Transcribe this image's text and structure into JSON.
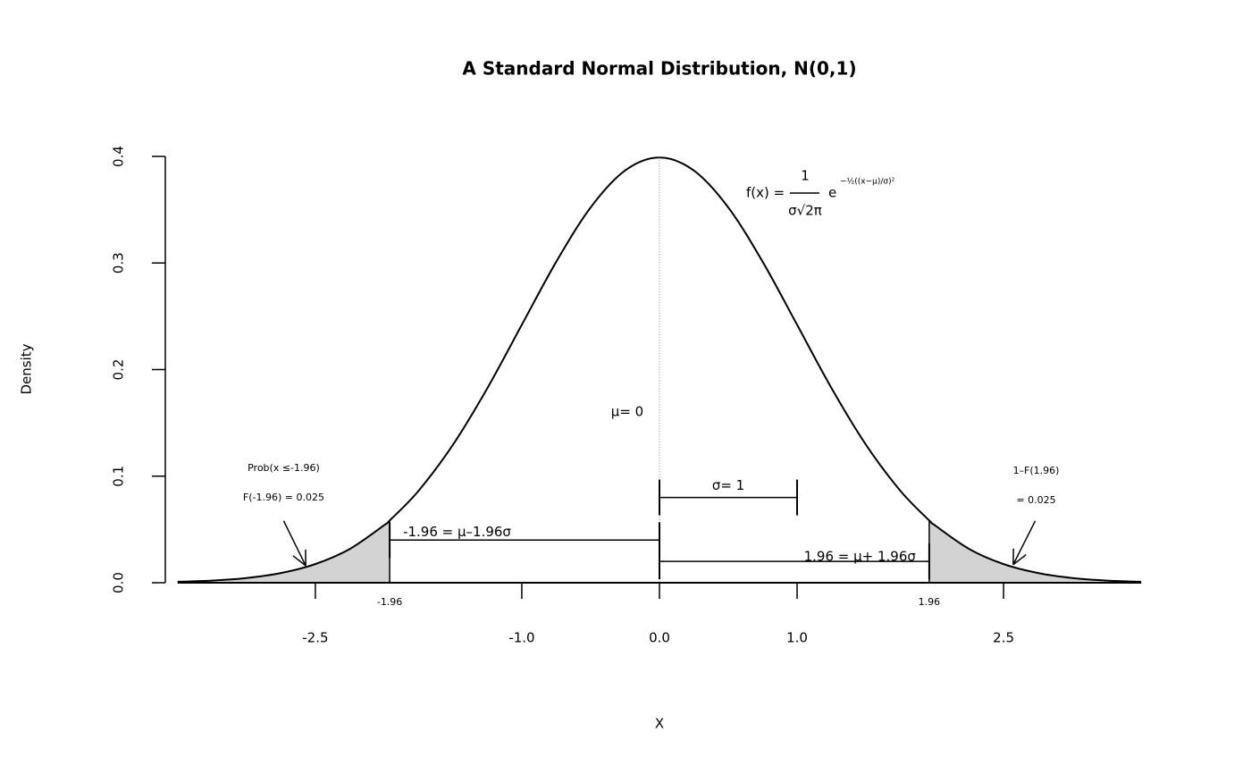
{
  "chart_data": {
    "type": "line",
    "title": "A Standard Normal Distribution, N(0,1)",
    "xlabel": "X",
    "ylabel": "Density",
    "x": [
      -3.5,
      -3.25,
      -3,
      -2.75,
      -2.5,
      -2.25,
      -2,
      -1.96,
      -1.75,
      -1.5,
      -1.25,
      -1,
      -0.75,
      -0.5,
      -0.25,
      0,
      0.25,
      0.5,
      0.75,
      1,
      1.25,
      1.5,
      1.75,
      1.96,
      2,
      2.25,
      2.5,
      2.75,
      3,
      3.25,
      3.5
    ],
    "values": [
      0.0009,
      0.002,
      0.0044,
      0.0091,
      0.0175,
      0.0317,
      0.054,
      0.0584,
      0.0863,
      0.1295,
      0.1826,
      0.242,
      0.3011,
      0.3521,
      0.3867,
      0.3989,
      0.3867,
      0.3521,
      0.3011,
      0.242,
      0.1826,
      0.1295,
      0.0863,
      0.0584,
      0.054,
      0.0317,
      0.0175,
      0.0091,
      0.0044,
      0.002,
      0.0009
    ],
    "color": "#000000",
    "shade_color": "#d3d3d3",
    "xlim": [
      -3.59,
      3.59
    ],
    "ylim": [
      0,
      0.4
    ],
    "xticks": [
      -2.5,
      {
        "value": -1,
        "label": "-1.0"
      },
      {
        "value": 0,
        "label": "0.0"
      },
      {
        "value": 1,
        "label": "1.0"
      },
      2.5
    ],
    "yticks": [
      {
        "value": 0,
        "label": "0.0"
      },
      0.1,
      0.2,
      0.3,
      0.4
    ],
    "crit_ticks": [
      -1.96,
      1.96
    ],
    "mean_line": {
      "x": 0,
      "y": 0.3989,
      "label": "μ= 0"
    },
    "brackets": [
      {
        "from": 0,
        "to": 1,
        "y": 0.08,
        "label": "σ= 1"
      },
      {
        "from": -1.96,
        "to": 0,
        "y": 0.04,
        "label": "-1.96 = μ–1.96σ"
      },
      {
        "from": 0,
        "to": 1.96,
        "y": 0.02,
        "label": "1.96 = μ+ 1.96σ"
      }
    ],
    "arrows": [
      {
        "from": [
          -2.73,
          0.058
        ],
        "to": [
          -2.57,
          0.016
        ],
        "label": [
          "Prob(x ≤-1.96)",
          "F(-1.96) = 0.025"
        ]
      },
      {
        "from": [
          2.73,
          0.058
        ],
        "to": [
          2.57,
          0.017
        ],
        "label": [
          "1–F(1.96)",
          "= 0.025"
        ]
      }
    ],
    "formula": {
      "lhs": "f(x) =",
      "numerator": "1",
      "denominator": "σ√2π",
      "base": "e",
      "exponent": "−½((x−μ)/σ)²"
    }
  }
}
